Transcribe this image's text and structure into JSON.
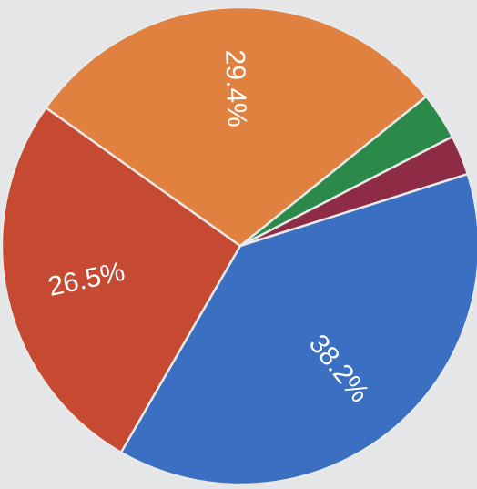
{
  "chart_data": {
    "type": "pie",
    "title": "",
    "slices": [
      {
        "label": "26.5%",
        "value": 26.5,
        "color": "#c64a31"
      },
      {
        "label": "29.4%",
        "value": 29.4,
        "color": "#e0813f"
      },
      {
        "label": "",
        "value": 3.2,
        "color": "#2b8a4a"
      },
      {
        "label": "",
        "value": 2.7,
        "color": "#8f2c45"
      },
      {
        "label": "38.2%",
        "value": 38.2,
        "color": "#3a6fc2"
      }
    ],
    "label_color": "#ffffff",
    "separator_color": "#e9e9e9",
    "legend": "none"
  }
}
